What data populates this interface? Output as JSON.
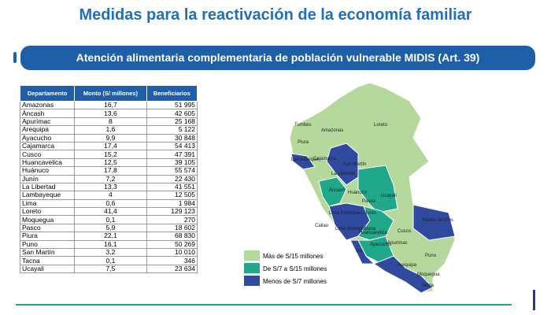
{
  "header": {
    "title": "Medidas para la reactivación  de la economía familiar",
    "banner": "Atención alimentaria complementaria de población vulnerable MIDIS (Art. 39)"
  },
  "table": {
    "columns": [
      "Departamento",
      "Monto (S/ millones)",
      "Beneficiarios"
    ],
    "rows": [
      [
        "Amazonas",
        "16,7",
        "51 995"
      ],
      [
        "Áncash",
        "13,6",
        "42 605"
      ],
      [
        "Apurímac",
        "8",
        "25 168"
      ],
      [
        "Arequipa",
        "1,6",
        "5 122"
      ],
      [
        "Ayacucho",
        "9,9",
        "30 848"
      ],
      [
        "Cajamarca",
        "17,4",
        "54 413"
      ],
      [
        "Cusco",
        "15,2",
        "47 391"
      ],
      [
        "Huancavelica",
        "12,5",
        "39 105"
      ],
      [
        "Huánuco",
        "17,8",
        "55 574"
      ],
      [
        "Junín",
        "7,2",
        "22 430"
      ],
      [
        "La Libertad",
        "13,3",
        "41 551"
      ],
      [
        "Lambayeque",
        "4",
        "12 505"
      ],
      [
        "Lima",
        "0,6",
        "1 984"
      ],
      [
        "Loreto",
        "41,4",
        "129 123"
      ],
      [
        "Moquegua",
        "0,1",
        "270"
      ],
      [
        "Pasco",
        "5,9",
        "18 602"
      ],
      [
        "Piura",
        "22,1",
        "68 830"
      ],
      [
        "Puno",
        "16,1",
        "50 269"
      ],
      [
        "San Martín",
        "3,2",
        "10 010"
      ],
      [
        "Tacna",
        "0,1",
        "346"
      ],
      [
        "Ucayali",
        "7,5",
        "23 634"
      ]
    ]
  },
  "map": {
    "labels": [
      "Tumbes",
      "Amazonas",
      "Loreto",
      "Piura",
      "Lambayeque",
      "Cajamarca",
      "San Martín",
      "La Libertad",
      "Áncash",
      "Huánuco",
      "Ucayali",
      "Pasco",
      "Lima Provincias",
      "Junín",
      "Callao",
      "Lima Metropolitana",
      "Huancavelica",
      "Cusco",
      "Madre de Dios",
      "Ayacucho",
      "Apurímac",
      "Ica",
      "Puno",
      "Arequipa",
      "Moquegua",
      "Tacna"
    ],
    "legend": [
      "Más de S/15 millones",
      "De S/7 a S/15 millones",
      "Menos de S/7 millones"
    ]
  }
}
